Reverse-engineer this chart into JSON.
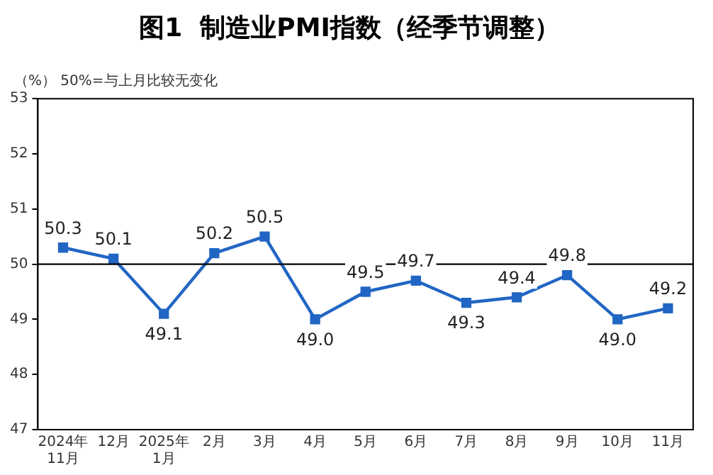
{
  "chart_data": {
    "type": "line",
    "title": "图1  制造业PMI指数（经季节调整）",
    "ylabel": "（%）",
    "annotations": [
      "50%=与上月比较无变化"
    ],
    "categories": [
      "2024年\n11月",
      "12月",
      "2025年\n1月",
      "2月",
      "3月",
      "4月",
      "5月",
      "6月",
      "7月",
      "8月",
      "9月",
      "10月",
      "11月"
    ],
    "series": [
      {
        "color": "#2166c4",
        "values": [
          50.3,
          50.1,
          49.1,
          50.2,
          50.5,
          49.0,
          49.5,
          49.7,
          49.3,
          49.4,
          49.8,
          49.0,
          49.2
        ],
        "value_labels": [
          "50.3",
          "50.1",
          "49.1",
          "50.2",
          "50.5",
          "49.0",
          "49.5",
          "49.7",
          "49.3",
          "49.4",
          "49.8",
          "49.0",
          "49.2"
        ]
      }
    ],
    "ylim": [
      47,
      53
    ],
    "yticks": [
      47,
      48,
      49,
      50,
      51,
      52,
      53
    ],
    "ref_lines": [
      {
        "axis": "y",
        "value": 50,
        "color": "#000000"
      }
    ],
    "marker": "square",
    "line_style": "solid",
    "legend": false,
    "grid": false
  }
}
